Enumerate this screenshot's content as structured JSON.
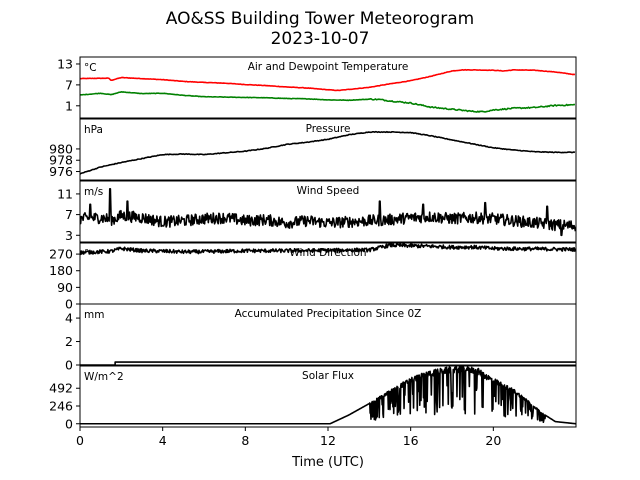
{
  "title_line1": "AO&SS Building Tower Meteorogram",
  "title_line2": "2023-10-07",
  "chart_data": {
    "type": "line",
    "xlabel": "Time (UTC)",
    "xlim": [
      0,
      24
    ],
    "xticks": [
      0,
      4,
      8,
      12,
      16,
      20
    ],
    "panels": [
      {
        "title": "Air and Dewpoint Temperature",
        "unit": "°C",
        "ylim": [
          -2.5,
          15
        ],
        "yticks": [
          1,
          7,
          13
        ],
        "series": [
          {
            "color": "#ff0000",
            "points": [
              [
                0,
                8.8
              ],
              [
                1,
                8.9
              ],
              [
                1.4,
                8.9
              ],
              [
                1.5,
                8.3
              ],
              [
                2,
                9.1
              ],
              [
                3,
                8.8
              ],
              [
                4,
                8.5
              ],
              [
                5,
                8.0
              ],
              [
                6,
                7.7
              ],
              [
                7,
                7.5
              ],
              [
                8,
                7.1
              ],
              [
                9,
                6.8
              ],
              [
                10,
                6.4
              ],
              [
                11,
                6.1
              ],
              [
                12,
                5.6
              ],
              [
                12.5,
                5.4
              ],
              [
                13,
                5.7
              ],
              [
                14,
                6.3
              ],
              [
                15,
                7.3
              ],
              [
                16,
                8.2
              ],
              [
                17,
                9.5
              ],
              [
                18,
                11.0
              ],
              [
                18.5,
                11.3
              ],
              [
                19,
                11.3
              ],
              [
                20,
                11.2
              ],
              [
                20.5,
                11.0
              ],
              [
                21,
                11.3
              ],
              [
                22,
                11.2
              ],
              [
                23,
                10.7
              ],
              [
                24,
                9.9
              ]
            ]
          },
          {
            "color": "#008000",
            "points": [
              [
                0,
                4.1
              ],
              [
                1,
                4.6
              ],
              [
                1.5,
                4.2
              ],
              [
                2,
                5.0
              ],
              [
                3,
                4.5
              ],
              [
                4,
                4.6
              ],
              [
                5,
                4.0
              ],
              [
                6,
                3.6
              ],
              [
                7,
                3.5
              ],
              [
                8,
                3.4
              ],
              [
                9,
                3.3
              ],
              [
                10,
                3.1
              ],
              [
                11,
                3.0
              ],
              [
                12,
                2.7
              ],
              [
                13,
                2.6
              ],
              [
                14,
                2.9
              ],
              [
                14.5,
                2.8
              ],
              [
                15,
                2.4
              ],
              [
                16,
                1.8
              ],
              [
                17,
                0.6
              ],
              [
                18,
                0.0
              ],
              [
                19,
                -0.6
              ],
              [
                19.5,
                -0.7
              ],
              [
                20,
                -0.2
              ],
              [
                21,
                0.3
              ],
              [
                22,
                0.5
              ],
              [
                23,
                1.1
              ],
              [
                24,
                1.3
              ]
            ]
          }
        ]
      },
      {
        "title": "Pressure",
        "unit": "hPa",
        "ylim": [
          974.5,
          985.3
        ],
        "yticks": [
          976,
          978,
          980
        ],
        "series": [
          {
            "color": "#000000",
            "points": [
              [
                0,
                975.6
              ],
              [
                1,
                976.8
              ],
              [
                2,
                977.6
              ],
              [
                3,
                978.3
              ],
              [
                4,
                979.0
              ],
              [
                5,
                979.1
              ],
              [
                6,
                979.0
              ],
              [
                7,
                979.3
              ],
              [
                8,
                979.6
              ],
              [
                9,
                980.1
              ],
              [
                10,
                980.8
              ],
              [
                11,
                981.2
              ],
              [
                12,
                981.7
              ],
              [
                13,
                982.5
              ],
              [
                14,
                983.0
              ],
              [
                15,
                983.0
              ],
              [
                16,
                982.9
              ],
              [
                17,
                982.3
              ],
              [
                18,
                981.6
              ],
              [
                19,
                980.9
              ],
              [
                20,
                980.2
              ],
              [
                21,
                979.8
              ],
              [
                22,
                979.5
              ],
              [
                23,
                979.4
              ],
              [
                24,
                979.4
              ]
            ]
          }
        ]
      },
      {
        "title": "Wind Speed",
        "unit": "m/s",
        "ylim": [
          1.7,
          13.5
        ],
        "yticks": [
          3,
          7,
          11
        ],
        "series": [
          {
            "color": "#000000",
            "base": [
              [
                0,
                6.2
              ],
              [
                1,
                6.4
              ],
              [
                1.6,
                6.0
              ],
              [
                2,
                6.8
              ],
              [
                3,
                6.4
              ],
              [
                4,
                5.6
              ],
              [
                5,
                5.8
              ],
              [
                6,
                6.2
              ],
              [
                7,
                6.4
              ],
              [
                8,
                5.8
              ],
              [
                9,
                6.0
              ],
              [
                10,
                5.4
              ],
              [
                11,
                5.8
              ],
              [
                12,
                5.4
              ],
              [
                13,
                5.6
              ],
              [
                14,
                5.8
              ],
              [
                15,
                6.0
              ],
              [
                16,
                6.4
              ],
              [
                17,
                6.6
              ],
              [
                18,
                6.2
              ],
              [
                19,
                6.4
              ],
              [
                20,
                6.2
              ],
              [
                21,
                5.8
              ],
              [
                22,
                5.4
              ],
              [
                23,
                5.0
              ],
              [
                24,
                4.8
              ]
            ],
            "gusts": [
              [
                1.45,
                12.0
              ],
              [
                0.5,
                9.0
              ],
              [
                2.3,
                9.6
              ],
              [
                14.5,
                9.6
              ],
              [
                16.6,
                9.0
              ],
              [
                19.6,
                9.3
              ],
              [
                22.6,
                8.6
              ],
              [
                23.3,
                3.0
              ]
            ],
            "noise_amplitude": 2.2
          }
        ]
      },
      {
        "title": "Wind Direction",
        "unit": "°",
        "ylim": [
          0,
          330
        ],
        "yticks": [
          0,
          90,
          180,
          270
        ],
        "series": [
          {
            "color": "#000000",
            "base": [
              [
                0,
                278
              ],
              [
                1.5,
                285
              ],
              [
                2,
                300
              ],
              [
                3,
                288
              ],
              [
                4,
                286
              ],
              [
                5,
                282
              ],
              [
                6,
                283
              ],
              [
                8,
                288
              ],
              [
                10,
                288
              ],
              [
                12,
                290
              ],
              [
                13,
                292
              ],
              [
                14,
                292
              ],
              [
                14.5,
                305
              ],
              [
                15,
                318
              ],
              [
                16,
                315
              ],
              [
                17,
                312
              ],
              [
                18,
                307
              ],
              [
                19,
                308
              ],
              [
                20,
                300
              ],
              [
                22,
                298
              ],
              [
                24,
                295
              ]
            ],
            "noise_amplitude": 20
          }
        ]
      },
      {
        "title": "Accumulated Precipitation Since 0Z",
        "unit": "mm",
        "ylim": [
          0,
          5.2
        ],
        "yticks": [
          0,
          2,
          4
        ],
        "series": [
          {
            "color": "#000000",
            "points": [
              [
                0,
                0
              ],
              [
                1.7,
                0
              ],
              [
                1.7,
                0.25
              ],
              [
                24,
                0.25
              ]
            ]
          }
        ]
      },
      {
        "title": "Solar Flux",
        "unit": "W/m^2",
        "ylim": [
          -45,
          800
        ],
        "yticks": [
          0,
          246,
          492
        ],
        "series": [
          {
            "color": "#000000",
            "base": [
              [
                0,
                0
              ],
              [
                12.1,
                0
              ],
              [
                13,
                120
              ],
              [
                14,
                280
              ],
              [
                15,
                460
              ],
              [
                16,
                630
              ],
              [
                17,
                730
              ],
              [
                18,
                780
              ],
              [
                18.7,
                790
              ],
              [
                19.2,
                765
              ],
              [
                20,
                620
              ],
              [
                21,
                470
              ],
              [
                21.6,
                340
              ],
              [
                22.4,
                140
              ],
              [
                23,
                30
              ],
              [
                24,
                0
              ]
            ],
            "dips_range": [
              14.0,
              22.5
            ]
          }
        ]
      }
    ]
  }
}
